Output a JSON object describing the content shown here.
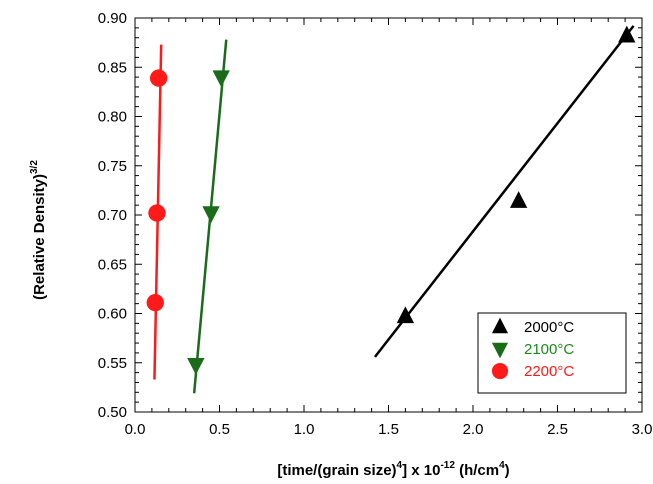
{
  "chart_data": {
    "type": "scatter",
    "xlim": [
      0.0,
      3.0
    ],
    "ylim": [
      0.5,
      0.9
    ],
    "x_ticks": [
      "0.0",
      "0.5",
      "1.0",
      "1.5",
      "2.0",
      "2.5",
      "3.0"
    ],
    "y_ticks": [
      "0.50",
      "0.55",
      "0.60",
      "0.65",
      "0.70",
      "0.75",
      "0.80",
      "0.85",
      "0.90"
    ],
    "xlabel": {
      "prefix": "[time/(grain size)",
      "sup1": "4",
      "mid": "] x 10",
      "sup2": "-12",
      "suffix": " (h/cm",
      "sup3": "4",
      "end": ")"
    },
    "ylabel": {
      "main": "(Relative Density)",
      "sup": "3/2"
    },
    "grid": false,
    "legend_position": "bottom-right",
    "series": [
      {
        "name": "2000°C",
        "color": "#000000",
        "marker": "triangle-up",
        "points": [
          [
            1.6,
            0.597
          ],
          [
            2.27,
            0.714
          ],
          [
            2.91,
            0.882
          ]
        ],
        "fit_line": [
          [
            1.42,
            0.556
          ],
          [
            2.95,
            0.892
          ]
        ]
      },
      {
        "name": "2100°C",
        "color": "#1a6b1a",
        "text_color": "#1a8a1a",
        "marker": "triangle-down",
        "points": [
          [
            0.36,
            0.548
          ],
          [
            0.45,
            0.702
          ],
          [
            0.51,
            0.84
          ]
        ],
        "fit_line": [
          [
            0.35,
            0.519
          ],
          [
            0.54,
            0.878
          ]
        ]
      },
      {
        "name": "2200°C",
        "color": "#ff1a1a",
        "marker": "circle",
        "points": [
          [
            0.12,
            0.611
          ],
          [
            0.13,
            0.702
          ],
          [
            0.14,
            0.839
          ]
        ],
        "fit_line": [
          [
            0.115,
            0.533
          ],
          [
            0.155,
            0.873
          ]
        ]
      }
    ]
  }
}
